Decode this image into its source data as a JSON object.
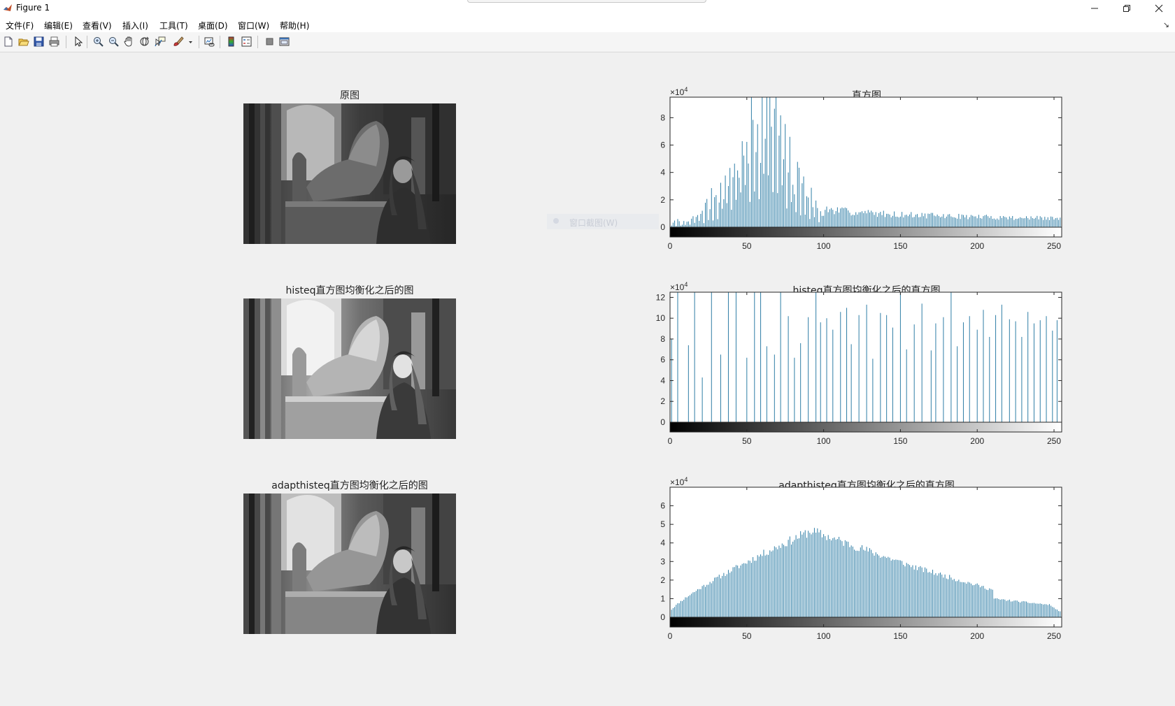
{
  "window": {
    "title": "Figure 1"
  },
  "menu": [
    "文件(F)",
    "编辑(E)",
    "查看(V)",
    "插入(I)",
    "工具(T)",
    "桌面(D)",
    "窗口(W)",
    "帮助(H)"
  ],
  "toolbar": {
    "icons": [
      "new-figure-icon",
      "open-file-icon",
      "save-icon",
      "print-icon",
      "select-arrow-icon",
      "zoom-in-icon",
      "zoom-out-icon",
      "pan-hand-icon",
      "rotate-3d-icon",
      "data-cursor-icon",
      "brush-icon",
      "link-plot-icon",
      "colorbar-icon",
      "legend-icon",
      "hide-plot-tools-icon",
      "show-plot-tools-icon"
    ]
  },
  "context_menu_ghost": {
    "label": "窗口截图(W)"
  },
  "images": [
    {
      "title": "原图",
      "variant": "original"
    },
    {
      "title": "histeq直方图均衡化之后的图",
      "variant": "histeq"
    },
    {
      "title": "adapthisteq直方图均衡化之后的图",
      "variant": "adapthisteq"
    }
  ],
  "chart_data": [
    {
      "type": "bar",
      "title": "直方图",
      "exponent": "4",
      "xlim": [
        0,
        255
      ],
      "ylim": [
        0,
        9.5
      ],
      "xticks": [
        0,
        50,
        100,
        150,
        200,
        250
      ],
      "yticks": [
        0,
        2,
        4,
        6,
        8
      ],
      "shape": "original",
      "bar_color": "#3a88a8"
    },
    {
      "type": "bar",
      "title": "histeq直方图均衡化之后的直方图",
      "exponent": "4",
      "xlim": [
        0,
        255
      ],
      "ylim": [
        0,
        12.5
      ],
      "xticks": [
        0,
        50,
        100,
        150,
        200,
        250
      ],
      "yticks": [
        0,
        2,
        4,
        6,
        8,
        10,
        12
      ],
      "x": [
        1,
        5,
        12,
        16,
        21,
        27,
        33,
        38,
        43,
        50,
        55,
        59,
        63,
        68,
        72,
        77,
        81,
        85,
        90,
        95,
        98,
        102,
        106,
        111,
        115,
        118,
        123,
        128,
        132,
        137,
        141,
        145,
        150,
        154,
        159,
        164,
        170,
        173,
        178,
        183,
        187,
        191,
        195,
        200,
        204,
        208,
        212,
        216,
        221,
        225,
        229,
        233,
        237,
        241,
        245,
        249,
        252
      ],
      "values": [
        8,
        12.5,
        7.4,
        12.5,
        4.3,
        12.5,
        6.5,
        12.5,
        12.5,
        6.2,
        12.5,
        12.5,
        7.3,
        6.5,
        12.5,
        10.2,
        6.2,
        7.6,
        10.1,
        12.5,
        9.6,
        10,
        8.9,
        10.6,
        11,
        7.5,
        10.3,
        11.3,
        6.1,
        10.5,
        10.3,
        9.1,
        12.5,
        7,
        9.4,
        11.4,
        6.9,
        9.5,
        10.1,
        12.5,
        7.3,
        9.6,
        10.2,
        8.9,
        10.8,
        8.2,
        10.3,
        11.3,
        9.9,
        9.7,
        8.2,
        10.6,
        9.5,
        9.8,
        10.2,
        8.8,
        9.8
      ]
    },
    {
      "type": "bar",
      "title": "adapthisteq直方图均衡化之后的直方图",
      "exponent": "4",
      "xlim": [
        0,
        255
      ],
      "ylim": [
        0,
        7
      ],
      "xticks": [
        0,
        50,
        100,
        150,
        200,
        250
      ],
      "yticks": [
        0,
        1,
        2,
        3,
        4,
        5,
        6
      ],
      "shape": "adapt",
      "bar_color": "#3a88a8"
    }
  ]
}
